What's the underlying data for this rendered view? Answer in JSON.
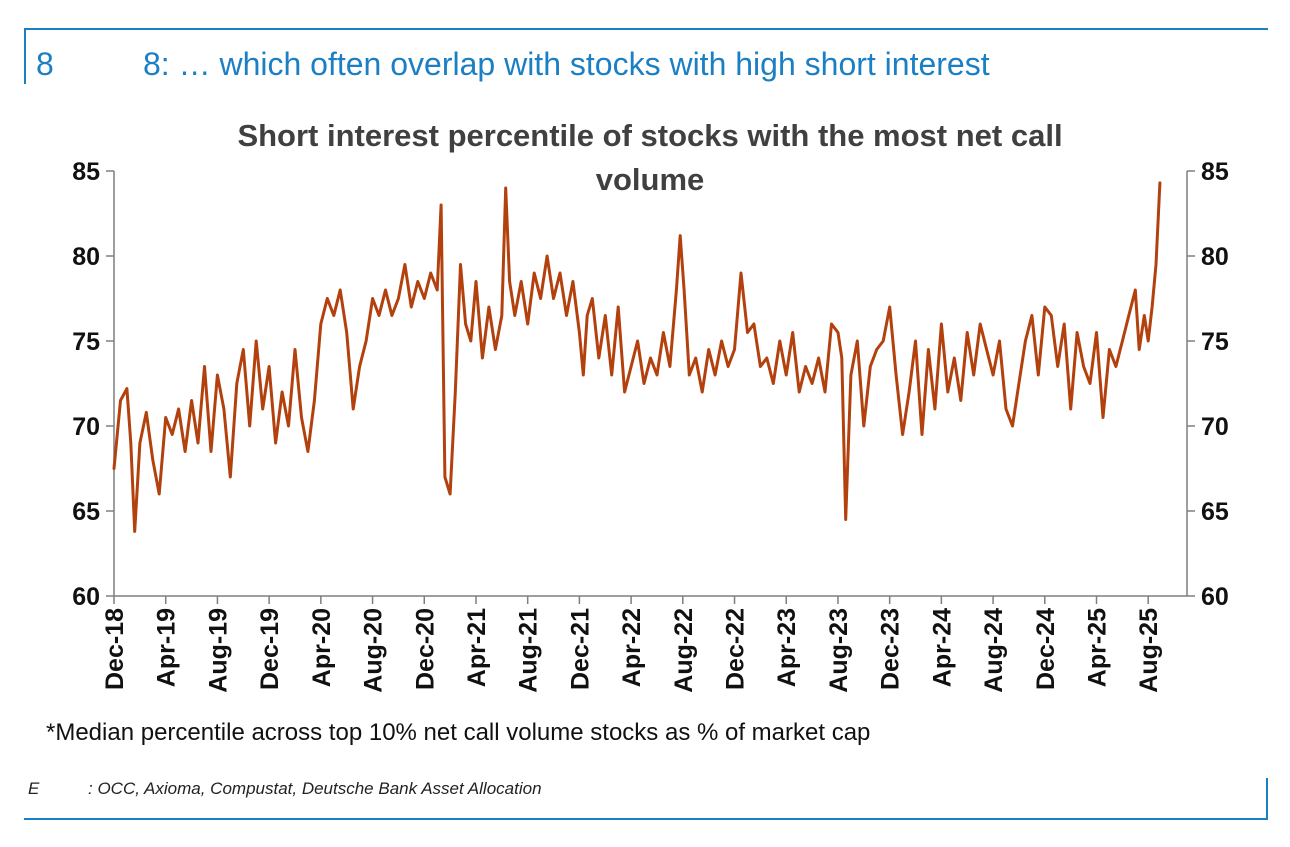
{
  "header": {
    "number": "8",
    "title": "8: … which often overlap with stocks with high short interest"
  },
  "footnote": "*Median percentile across top 10% net call volume stocks as % of market cap",
  "source": {
    "label": "E",
    "text": ": OCC, Axioma, Compustat, Deutsche Bank Asset Allocation"
  },
  "colors": {
    "accent": "#1b7fc4",
    "series": "#b3410e",
    "axis": "#7f7f7f"
  },
  "chart_data": {
    "type": "line",
    "title_lines": [
      "Short interest percentile of stocks with the most net call",
      "volume"
    ],
    "ylim": [
      60,
      85
    ],
    "yticks": [
      60,
      65,
      70,
      75,
      80,
      85
    ],
    "ytick_labels": [
      "60",
      "65",
      "70",
      "75",
      "80",
      "85"
    ],
    "x_months_range": [
      0,
      83
    ],
    "xticks": [
      0,
      4,
      8,
      12,
      16,
      20,
      24,
      28,
      32,
      36,
      40,
      44,
      48,
      52,
      56,
      60,
      64,
      68,
      72,
      76,
      80
    ],
    "xtick_labels": [
      "Dec-18",
      "Apr-19",
      "Aug-19",
      "Dec-19",
      "Apr-20",
      "Aug-20",
      "Dec-20",
      "Apr-21",
      "Aug-21",
      "Dec-21",
      "Apr-22",
      "Aug-22",
      "Dec-22",
      "Apr-23",
      "Aug-23",
      "Dec-23",
      "Apr-24",
      "Aug-24",
      "Dec-24",
      "Apr-25",
      "Aug-25"
    ],
    "series": [
      {
        "name": "Short interest percentile",
        "x_unit": "months since Dec-18",
        "points": [
          [
            0,
            67.5
          ],
          [
            0.5,
            71.5
          ],
          [
            1,
            72.2
          ],
          [
            1.3,
            69
          ],
          [
            1.6,
            63.8
          ],
          [
            2,
            69
          ],
          [
            2.5,
            70.8
          ],
          [
            3,
            68
          ],
          [
            3.5,
            66
          ],
          [
            4,
            70.5
          ],
          [
            4.5,
            69.5
          ],
          [
            5,
            71
          ],
          [
            5.5,
            68.5
          ],
          [
            6,
            71.5
          ],
          [
            6.5,
            69
          ],
          [
            7,
            73.5
          ],
          [
            7.5,
            68.5
          ],
          [
            8,
            73
          ],
          [
            8.5,
            71
          ],
          [
            9,
            67
          ],
          [
            9.5,
            72.5
          ],
          [
            10,
            74.5
          ],
          [
            10.5,
            70
          ],
          [
            11,
            75
          ],
          [
            11.5,
            71
          ],
          [
            12,
            73.5
          ],
          [
            12.5,
            69
          ],
          [
            13,
            72
          ],
          [
            13.5,
            70
          ],
          [
            14,
            74.5
          ],
          [
            14.5,
            70.5
          ],
          [
            15,
            68.5
          ],
          [
            15.5,
            71.5
          ],
          [
            16,
            76
          ],
          [
            16.5,
            77.5
          ],
          [
            17,
            76.5
          ],
          [
            17.5,
            78
          ],
          [
            18,
            75.5
          ],
          [
            18.5,
            71
          ],
          [
            19,
            73.5
          ],
          [
            19.5,
            75
          ],
          [
            20,
            77.5
          ],
          [
            20.5,
            76.5
          ],
          [
            21,
            78
          ],
          [
            21.5,
            76.5
          ],
          [
            22,
            77.5
          ],
          [
            22.5,
            79.5
          ],
          [
            23,
            77
          ],
          [
            23.5,
            78.5
          ],
          [
            24,
            77.5
          ],
          [
            24.5,
            79
          ],
          [
            25,
            78
          ],
          [
            25.3,
            83
          ],
          [
            25.6,
            67
          ],
          [
            26,
            66
          ],
          [
            26.4,
            72
          ],
          [
            26.8,
            79.5
          ],
          [
            27.2,
            76
          ],
          [
            27.6,
            75
          ],
          [
            28,
            78.5
          ],
          [
            28.5,
            74
          ],
          [
            29,
            77
          ],
          [
            29.5,
            74.5
          ],
          [
            30,
            76.5
          ],
          [
            30.3,
            84
          ],
          [
            30.6,
            78.5
          ],
          [
            31,
            76.5
          ],
          [
            31.5,
            78.5
          ],
          [
            32,
            76
          ],
          [
            32.5,
            79
          ],
          [
            33,
            77.5
          ],
          [
            33.5,
            80
          ],
          [
            34,
            77.5
          ],
          [
            34.5,
            79
          ],
          [
            35,
            76.5
          ],
          [
            35.5,
            78.5
          ],
          [
            36,
            75.5
          ],
          [
            36.3,
            73
          ],
          [
            36.6,
            76.5
          ],
          [
            37,
            77.5
          ],
          [
            37.5,
            74
          ],
          [
            38,
            76.5
          ],
          [
            38.5,
            73
          ],
          [
            39,
            77
          ],
          [
            39.5,
            72
          ],
          [
            40,
            73.5
          ],
          [
            40.5,
            75
          ],
          [
            41,
            72.5
          ],
          [
            41.5,
            74
          ],
          [
            42,
            73
          ],
          [
            42.5,
            75.5
          ],
          [
            43,
            73.5
          ],
          [
            43.5,
            78
          ],
          [
            43.8,
            81.2
          ],
          [
            44.1,
            78
          ],
          [
            44.5,
            73
          ],
          [
            45,
            74
          ],
          [
            45.5,
            72
          ],
          [
            46,
            74.5
          ],
          [
            46.5,
            73
          ],
          [
            47,
            75
          ],
          [
            47.5,
            73.5
          ],
          [
            48,
            74.5
          ],
          [
            48.5,
            79
          ],
          [
            49,
            75.5
          ],
          [
            49.5,
            76
          ],
          [
            50,
            73.5
          ],
          [
            50.5,
            74
          ],
          [
            51,
            72.5
          ],
          [
            51.5,
            75
          ],
          [
            52,
            73
          ],
          [
            52.5,
            75.5
          ],
          [
            53,
            72
          ],
          [
            53.5,
            73.5
          ],
          [
            54,
            72.5
          ],
          [
            54.5,
            74
          ],
          [
            55,
            72
          ],
          [
            55.5,
            76
          ],
          [
            56,
            75.5
          ],
          [
            56.3,
            74
          ],
          [
            56.6,
            64.5
          ],
          [
            57,
            73
          ],
          [
            57.5,
            75
          ],
          [
            58,
            70
          ],
          [
            58.5,
            73.5
          ],
          [
            59,
            74.5
          ],
          [
            59.5,
            75
          ],
          [
            60,
            77
          ],
          [
            60.5,
            73
          ],
          [
            61,
            69.5
          ],
          [
            61.5,
            72
          ],
          [
            62,
            75
          ],
          [
            62.5,
            69.5
          ],
          [
            63,
            74.5
          ],
          [
            63.5,
            71
          ],
          [
            64,
            76
          ],
          [
            64.5,
            72
          ],
          [
            65,
            74
          ],
          [
            65.5,
            71.5
          ],
          [
            66,
            75.5
          ],
          [
            66.5,
            73
          ],
          [
            67,
            76
          ],
          [
            67.5,
            74.5
          ],
          [
            68,
            73
          ],
          [
            68.5,
            75
          ],
          [
            69,
            71
          ],
          [
            69.5,
            70
          ],
          [
            70,
            72.5
          ],
          [
            70.5,
            75
          ],
          [
            71,
            76.5
          ],
          [
            71.5,
            73
          ],
          [
            72,
            77
          ],
          [
            72.5,
            76.5
          ],
          [
            73,
            73.5
          ],
          [
            73.5,
            76
          ],
          [
            74,
            71
          ],
          [
            74.5,
            75.5
          ],
          [
            75,
            73.5
          ],
          [
            75.5,
            72.5
          ],
          [
            76,
            75.5
          ],
          [
            76.5,
            70.5
          ],
          [
            77,
            74.5
          ],
          [
            77.5,
            73.5
          ],
          [
            78,
            75
          ],
          [
            78.5,
            76.5
          ],
          [
            79,
            78
          ],
          [
            79.3,
            74.5
          ],
          [
            79.7,
            76.5
          ],
          [
            80,
            75
          ],
          [
            80.3,
            77
          ],
          [
            80.6,
            79.5
          ],
          [
            80.9,
            84.3
          ]
        ]
      }
    ]
  }
}
